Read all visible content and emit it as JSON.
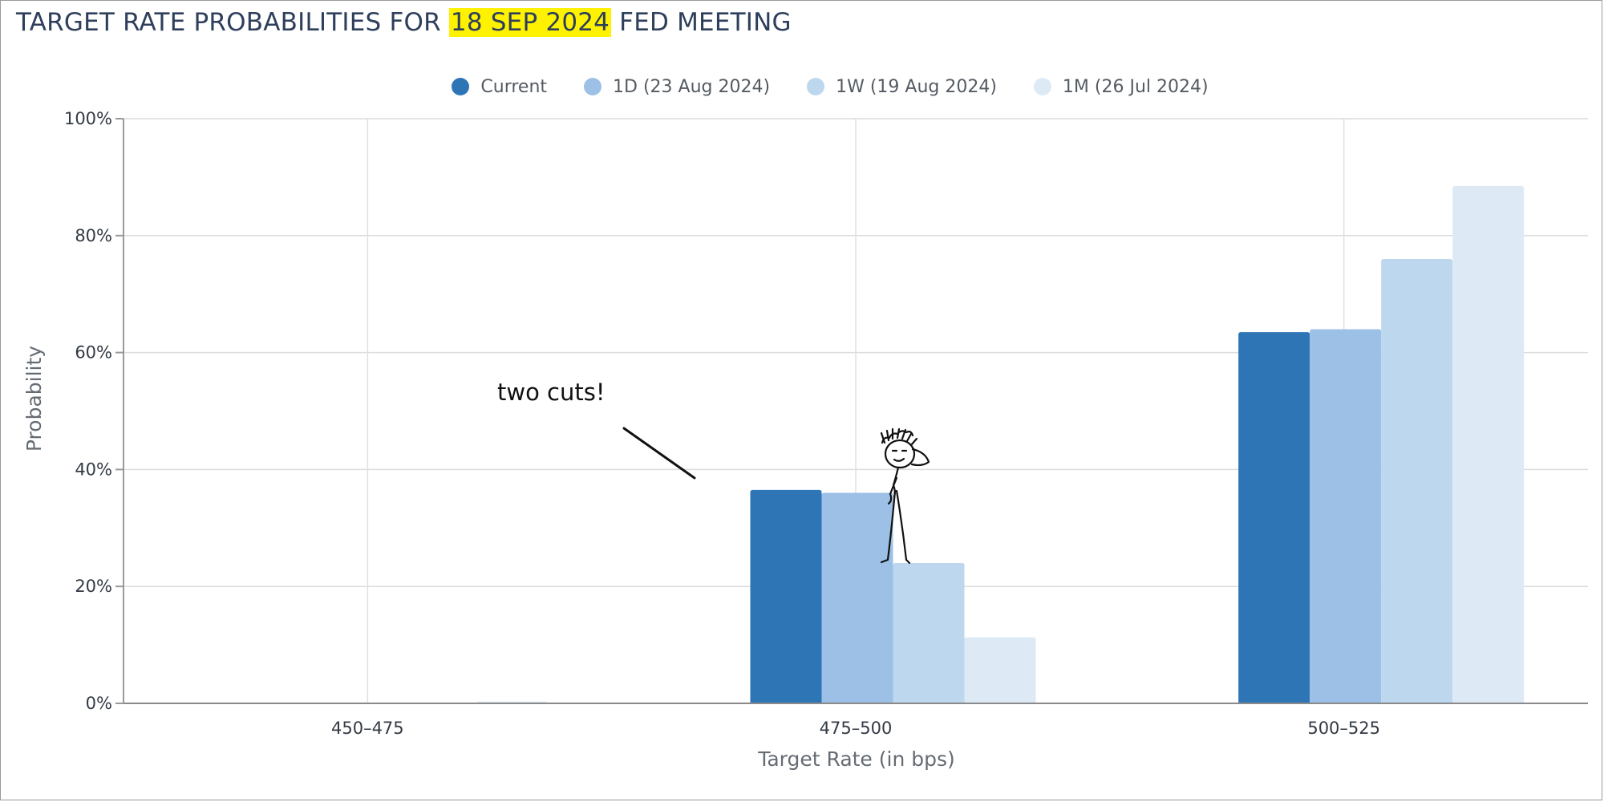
{
  "title": {
    "prefix": "TARGET RATE PROBABILITIES FOR ",
    "highlight": "18 SEP 2024",
    "suffix": " FED MEETING"
  },
  "annotation": {
    "text": "two cuts!"
  },
  "chart_data": {
    "type": "bar",
    "categories": [
      "450-475",
      "475-500",
      "500-525"
    ],
    "xlabel": "Target Rate (in bps)",
    "ylabel": "Probability",
    "ylim": [
      0,
      100
    ],
    "yticks": [
      0,
      20,
      40,
      60,
      80,
      100
    ],
    "ytick_labels": [
      "0%",
      "20%",
      "40%",
      "60%",
      "80%",
      "100%"
    ],
    "grid": true,
    "legend_position": "top-center",
    "series": [
      {
        "name": "Current",
        "color": "#2e75b6",
        "values": [
          0,
          36.5,
          63.5
        ]
      },
      {
        "name": "1D (23 Aug 2024)",
        "color": "#9dc0e6",
        "values": [
          0,
          36.0,
          64.0
        ]
      },
      {
        "name": "1W (19 Aug 2024)",
        "color": "#bdd7ee",
        "values": [
          0,
          24.0,
          76.0
        ]
      },
      {
        "name": "1M (26 Jul 2024)",
        "color": "#ddeaf6",
        "values": [
          0.3,
          11.3,
          88.5
        ]
      }
    ]
  }
}
